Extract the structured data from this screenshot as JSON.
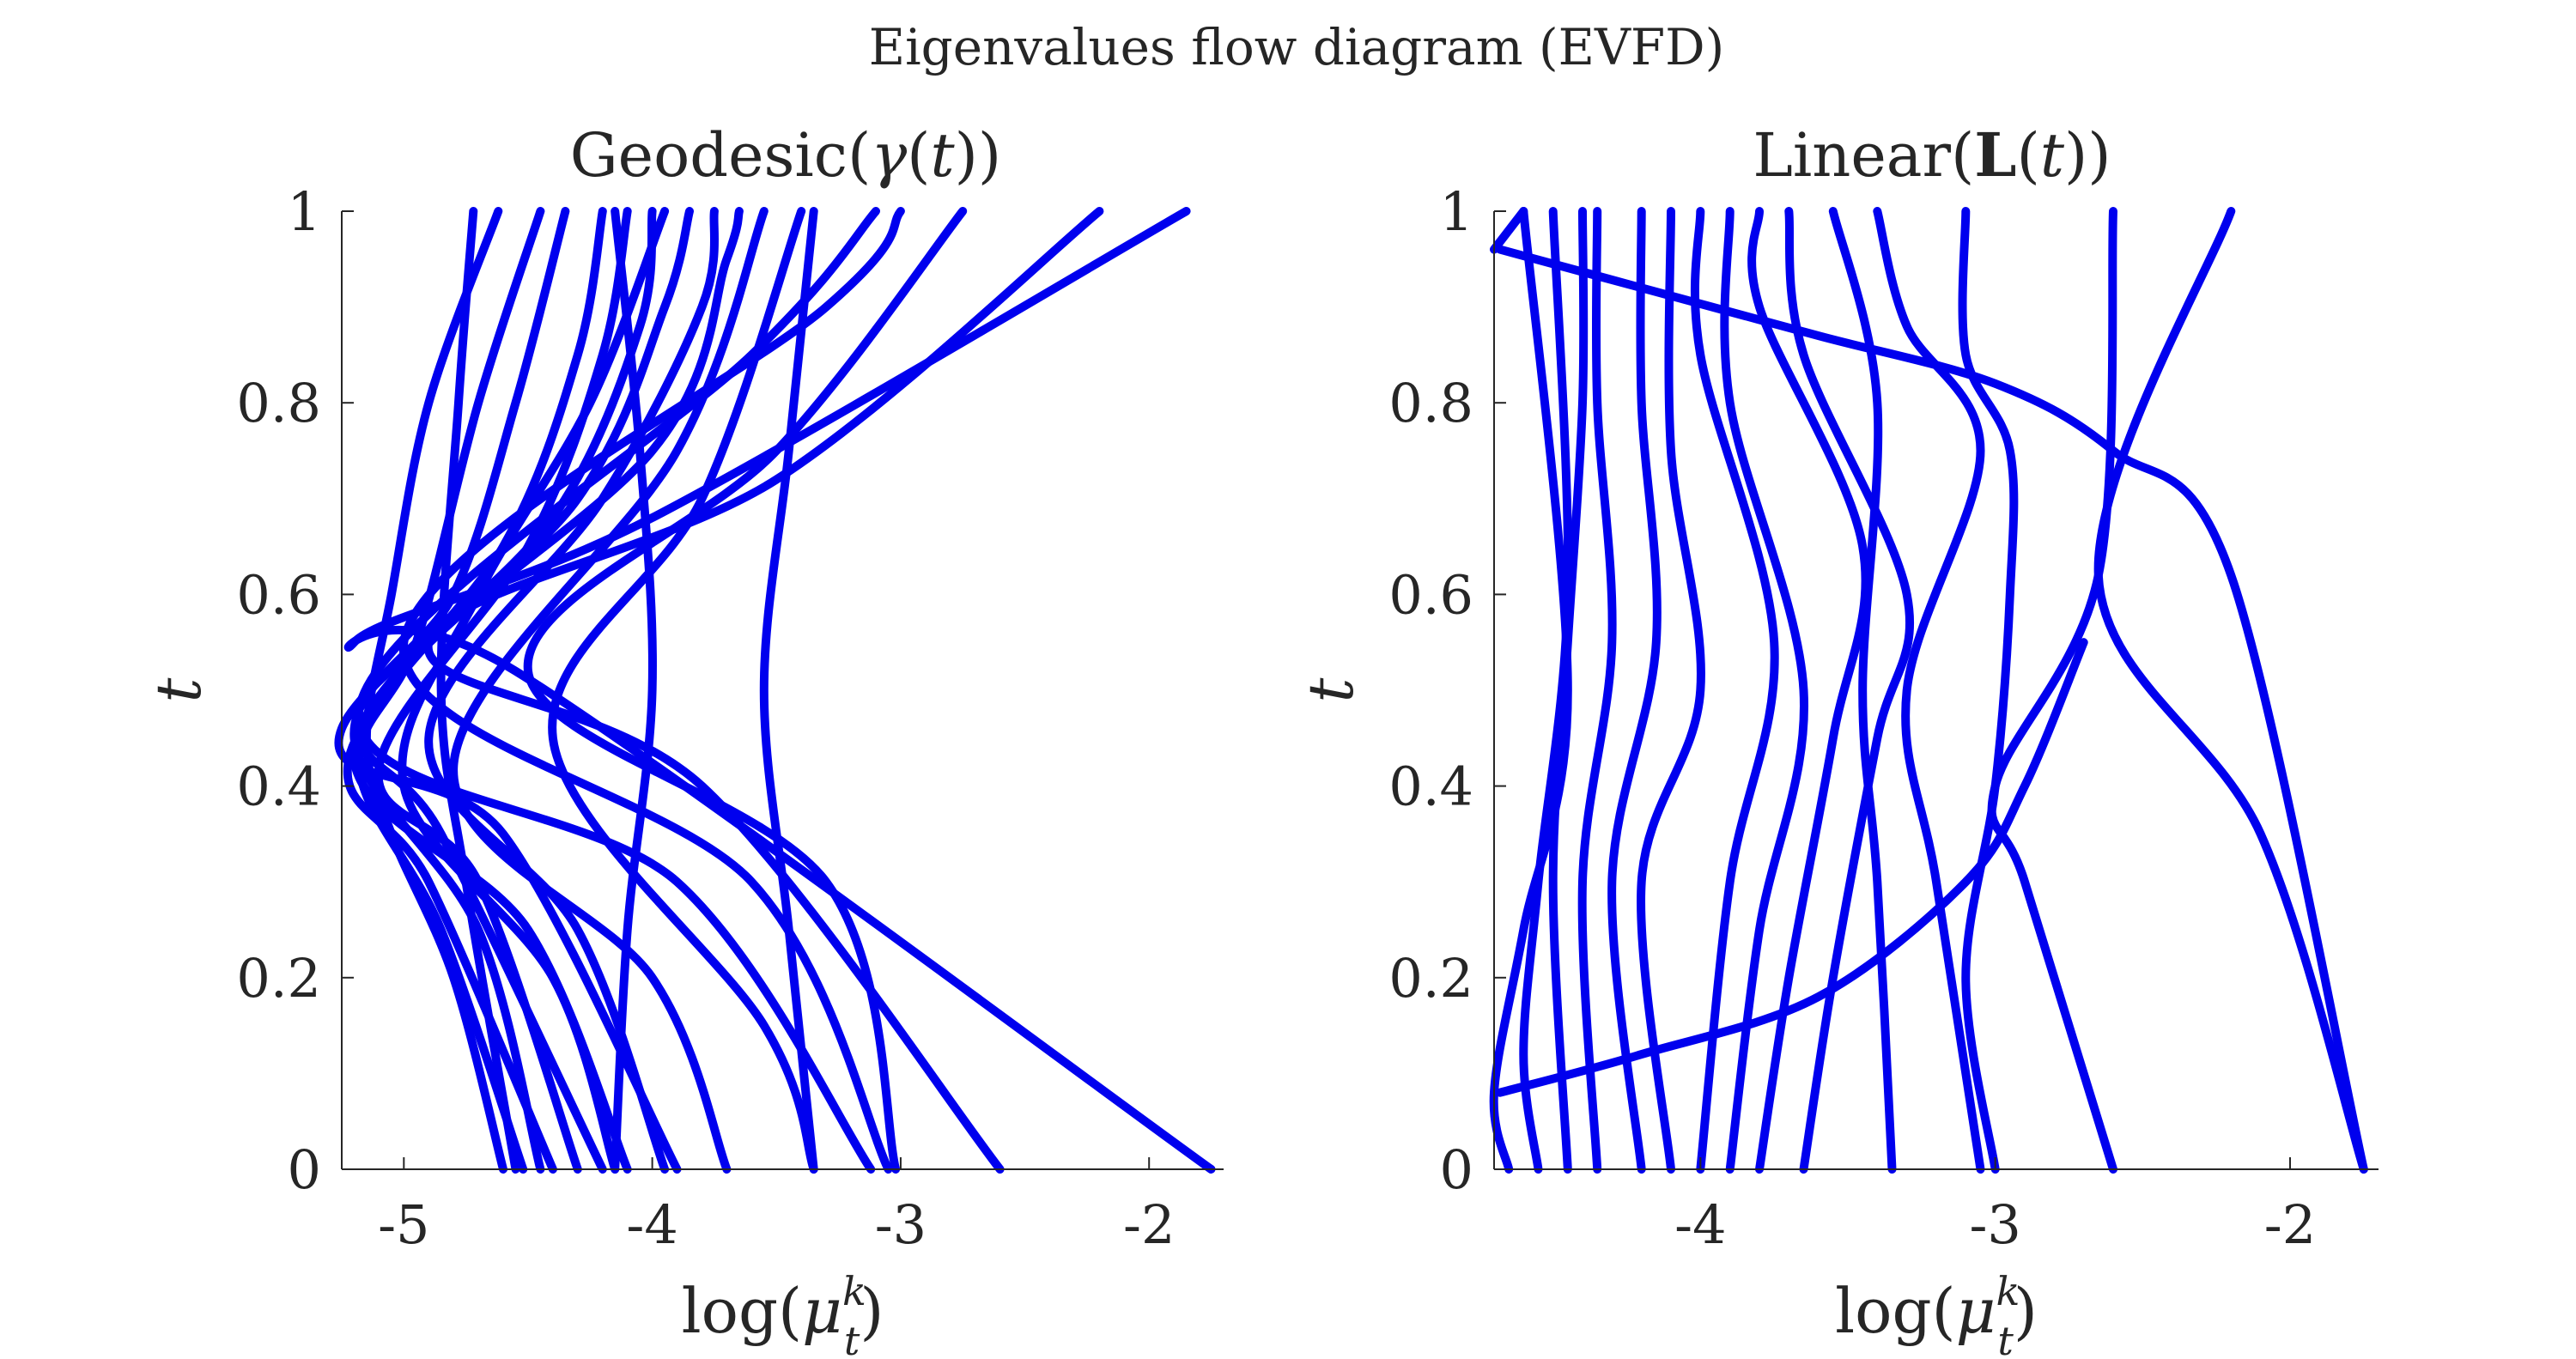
{
  "figure": {
    "title": "Eigenvalues flow diagram (EVFD)",
    "line_color": "#0000ee",
    "axis_color": "#262626",
    "background": "#ffffff"
  },
  "chart_data": [
    {
      "type": "line",
      "title": "Geodesic(γ(t))",
      "xlabel": "log(μ_t^k)",
      "ylabel": "t",
      "xlim": [
        -5.25,
        -1.7
      ],
      "ylim": [
        0,
        1
      ],
      "xticks": [
        "-5",
        "-4",
        "-3",
        "-2"
      ],
      "yticks": [
        "0",
        "0.2",
        "0.4",
        "0.6",
        "0.8",
        "1"
      ],
      "grid": false,
      "description_note": "",
      "series": [
        {
          "points": [
            [
              -4.6,
              0
            ],
            [
              -4.8,
              0.2
            ],
            [
              -5.05,
              0.35
            ],
            [
              -5.15,
              0.45
            ],
            [
              -5.05,
              0.6
            ],
            [
              -4.9,
              0.8
            ],
            [
              -4.62,
              1
            ]
          ]
        },
        {
          "points": [
            [
              -4.52,
              0
            ],
            [
              -4.85,
              0.25
            ],
            [
              -5.18,
              0.42
            ],
            [
              -4.95,
              0.55
            ],
            [
              -4.7,
              0.8
            ],
            [
              -4.45,
              1
            ]
          ]
        },
        {
          "points": [
            [
              -4.45,
              0
            ],
            [
              -4.7,
              0.25
            ],
            [
              -5.2,
              0.45
            ],
            [
              -4.8,
              0.6
            ],
            [
              -4.55,
              0.8
            ],
            [
              -4.35,
              1
            ]
          ]
        },
        {
          "points": [
            [
              -4.4,
              0
            ],
            [
              -4.9,
              0.3
            ],
            [
              -5.22,
              0.43
            ],
            [
              -4.6,
              0.65
            ],
            [
              -4.3,
              0.85
            ],
            [
              -4.2,
              1
            ]
          ]
        },
        {
          "points": [
            [
              -4.3,
              0
            ],
            [
              -4.7,
              0.3
            ],
            [
              -5.1,
              0.42
            ],
            [
              -4.5,
              0.65
            ],
            [
              -4.2,
              0.85
            ],
            [
              -4.1,
              1
            ]
          ]
        },
        {
          "points": [
            [
              -4.2,
              0
            ],
            [
              -4.85,
              0.35
            ],
            [
              -5.15,
              0.47
            ],
            [
              -4.4,
              0.68
            ],
            [
              -4.05,
              0.88
            ],
            [
              -4.0,
              1
            ]
          ]
        },
        {
          "points": [
            [
              -4.15,
              0
            ],
            [
              -4.4,
              0.2
            ],
            [
              -5.0,
              0.4
            ],
            [
              -4.7,
              0.6
            ],
            [
              -4.25,
              0.8
            ],
            [
              -3.95,
              1
            ]
          ]
        },
        {
          "points": [
            [
              -4.1,
              0
            ],
            [
              -4.5,
              0.25
            ],
            [
              -5.2,
              0.44
            ],
            [
              -4.3,
              0.7
            ],
            [
              -3.95,
              0.9
            ],
            [
              -3.85,
              1
            ]
          ]
        },
        {
          "points": [
            [
              -3.95,
              0
            ],
            [
              -4.3,
              0.25
            ],
            [
              -4.9,
              0.45
            ],
            [
              -4.2,
              0.7
            ],
            [
              -3.8,
              0.9
            ],
            [
              -3.75,
              1
            ]
          ]
        },
        {
          "points": [
            [
              -3.9,
              0
            ],
            [
              -4.6,
              0.35
            ],
            [
              -5.25,
              0.46
            ],
            [
              -4.0,
              0.75
            ],
            [
              -3.7,
              0.95
            ],
            [
              -3.65,
              1
            ]
          ]
        },
        {
          "points": [
            [
              -3.7,
              0
            ],
            [
              -4.0,
              0.2
            ],
            [
              -4.8,
              0.42
            ],
            [
              -3.9,
              0.75
            ],
            [
              -3.55,
              1
            ]
          ]
        },
        {
          "points": [
            [
              -3.35,
              0
            ],
            [
              -3.55,
              0.15
            ],
            [
              -4.4,
              0.45
            ],
            [
              -3.8,
              0.7
            ],
            [
              -3.4,
              1
            ]
          ]
        },
        {
          "points": [
            [
              -3.12,
              0
            ],
            [
              -3.9,
              0.3
            ],
            [
              -5.18,
              0.48
            ],
            [
              -3.6,
              0.85
            ],
            [
              -3.1,
              1
            ]
          ]
        },
        {
          "points": [
            [
              -3.05,
              0
            ],
            [
              -3.6,
              0.3
            ],
            [
              -5.0,
              0.55
            ],
            [
              -3.3,
              0.9
            ],
            [
              -3.0,
              1
            ]
          ]
        },
        {
          "points": [
            [
              -3.02,
              0
            ],
            [
              -3.3,
              0.3
            ],
            [
              -4.5,
              0.52
            ],
            [
              -3.5,
              0.75
            ],
            [
              -2.75,
              1
            ]
          ]
        },
        {
          "points": [
            [
              -2.6,
              0
            ],
            [
              -3.8,
              0.4
            ],
            [
              -4.9,
              0.55
            ],
            [
              -3.5,
              0.72
            ],
            [
              -2.2,
              1
            ]
          ]
        },
        {
          "points": [
            [
              -1.75,
              0
            ],
            [
              -4.55,
              0.52
            ],
            [
              -5.2,
              0.55
            ],
            [
              -4.0,
              0.68
            ],
            [
              -1.85,
              1
            ]
          ]
        },
        {
          "points": [
            [
              -4.15,
              0
            ],
            [
              -4.1,
              0.25
            ],
            [
              -4.0,
              0.5
            ],
            [
              -4.05,
              0.75
            ],
            [
              -4.15,
              1
            ]
          ]
        },
        {
          "points": [
            [
              -3.35,
              0
            ],
            [
              -3.45,
              0.25
            ],
            [
              -3.55,
              0.5
            ],
            [
              -3.45,
              0.75
            ],
            [
              -3.35,
              1
            ]
          ]
        },
        {
          "points": [
            [
              -4.55,
              0
            ],
            [
              -4.75,
              0.3
            ],
            [
              -4.85,
              0.5
            ],
            [
              -4.78,
              0.8
            ],
            [
              -4.72,
              1
            ]
          ]
        }
      ]
    },
    {
      "type": "line",
      "title": "Linear(L(t))",
      "xlabel": "log(μ_t^k)",
      "ylabel": "t",
      "xlim": [
        -4.7,
        -1.7
      ],
      "ylim": [
        0,
        1
      ],
      "xticks": [
        "-4",
        "-3",
        "-2"
      ],
      "yticks": [
        "0",
        "0.2",
        "0.4",
        "0.6",
        "0.8",
        "1"
      ],
      "grid": false,
      "series": [
        {
          "points": [
            [
              -1.75,
              0
            ],
            [
              -2.1,
              0.35
            ],
            [
              -2.65,
              0.62
            ],
            [
              -2.2,
              1
            ]
          ]
        },
        {
          "points": [
            [
              -2.6,
              0
            ],
            [
              -2.9,
              0.3
            ],
            [
              -3.0,
              0.4
            ],
            [
              -2.65,
              0.62
            ],
            [
              -2.6,
              1
            ]
          ]
        },
        {
          "points": [
            [
              -3.0,
              0
            ],
            [
              -3.1,
              0.2
            ],
            [
              -3.0,
              0.4
            ],
            [
              -2.95,
              0.6
            ],
            [
              -2.95,
              0.75
            ],
            [
              -3.1,
              0.85
            ],
            [
              -3.1,
              1
            ]
          ]
        },
        {
          "points": [
            [
              -3.05,
              0
            ],
            [
              -3.2,
              0.3
            ],
            [
              -3.3,
              0.5
            ],
            [
              -3.05,
              0.75
            ],
            [
              -3.3,
              0.88
            ],
            [
              -3.4,
              1
            ]
          ]
        },
        {
          "points": [
            [
              -3.35,
              0
            ],
            [
              -3.4,
              0.3
            ],
            [
              -3.45,
              0.5
            ],
            [
              -3.4,
              0.8
            ],
            [
              -3.55,
              1
            ]
          ]
        },
        {
          "points": [
            [
              -3.65,
              0
            ],
            [
              -3.55,
              0.2
            ],
            [
              -3.4,
              0.45
            ],
            [
              -3.3,
              0.6
            ],
            [
              -3.65,
              0.85
            ],
            [
              -3.7,
              1
            ]
          ]
        },
        {
          "points": [
            [
              -3.8,
              0
            ],
            [
              -3.7,
              0.2
            ],
            [
              -3.55,
              0.45
            ],
            [
              -3.45,
              0.65
            ],
            [
              -3.8,
              0.9
            ],
            [
              -3.8,
              1
            ]
          ]
        },
        {
          "points": [
            [
              -3.9,
              0
            ],
            [
              -3.8,
              0.25
            ],
            [
              -3.65,
              0.5
            ],
            [
              -3.9,
              0.8
            ],
            [
              -3.9,
              1
            ]
          ]
        },
        {
          "points": [
            [
              -4.0,
              0
            ],
            [
              -3.9,
              0.3
            ],
            [
              -3.75,
              0.55
            ],
            [
              -4.0,
              0.85
            ],
            [
              -4.0,
              1
            ]
          ]
        },
        {
          "points": [
            [
              -4.1,
              0
            ],
            [
              -4.2,
              0.3
            ],
            [
              -4.0,
              0.5
            ],
            [
              -4.1,
              0.75
            ],
            [
              -4.1,
              1
            ]
          ]
        },
        {
          "points": [
            [
              -4.2,
              0
            ],
            [
              -4.3,
              0.3
            ],
            [
              -4.15,
              0.55
            ],
            [
              -4.2,
              0.8
            ],
            [
              -4.2,
              1
            ]
          ]
        },
        {
          "points": [
            [
              -4.35,
              0
            ],
            [
              -4.4,
              0.3
            ],
            [
              -4.3,
              0.55
            ],
            [
              -4.35,
              0.8
            ],
            [
              -4.35,
              1
            ]
          ]
        },
        {
          "points": [
            [
              -4.45,
              0
            ],
            [
              -4.5,
              0.3
            ],
            [
              -4.45,
              0.55
            ],
            [
              -4.4,
              0.8
            ],
            [
              -4.4,
              1
            ]
          ]
        },
        {
          "points": [
            [
              -4.55,
              0
            ],
            [
              -4.6,
              0.12
            ],
            [
              -4.55,
              0.3
            ],
            [
              -4.45,
              0.6
            ],
            [
              -4.5,
              1
            ]
          ]
        },
        {
          "points": [
            [
              -4.65,
              0
            ],
            [
              -4.7,
              0.08
            ],
            [
              -4.6,
              0.25
            ],
            [
              -4.45,
              0.5
            ],
            [
              -4.6,
              1
            ]
          ]
        },
        {
          "points": [
            [
              -4.68,
              0.96
            ],
            [
              -4.2,
              0.92
            ],
            [
              -3.6,
              0.87
            ],
            [
              -3.0,
              0.82
            ],
            [
              -2.6,
              0.75
            ],
            [
              -2.2,
              0.62
            ],
            [
              -1.75,
              0
            ]
          ]
        },
        {
          "points": [
            [
              -4.68,
              0.08
            ],
            [
              -4.2,
              0.12
            ],
            [
              -3.6,
              0.18
            ],
            [
              -3.1,
              0.3
            ],
            [
              -2.9,
              0.4
            ],
            [
              -2.7,
              0.55
            ]
          ]
        },
        {
          "points": [
            [
              -4.6,
              1
            ],
            [
              -4.7,
              0.96
            ]
          ]
        }
      ]
    }
  ]
}
